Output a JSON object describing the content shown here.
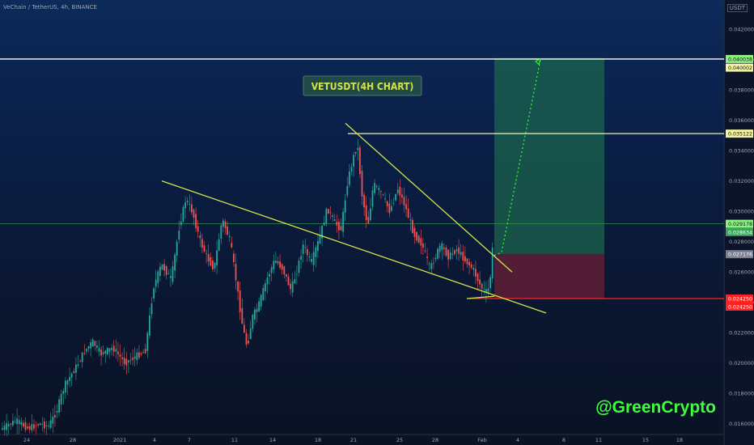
{
  "header": {
    "symbol_line": "VeChain / TetherUS, 4h, BINANCE",
    "unit": "USDT"
  },
  "colors": {
    "up": "#26a69a",
    "down": "#ef5350",
    "trend": "#d4e34a",
    "level": "#f2f2a0",
    "target_zone": "#1f6e4e",
    "stop_zone": "#6b1f35",
    "stop_line": "#ff2222",
    "watermark": "#3cff3c"
  },
  "chart_data": {
    "type": "candlestick",
    "title": "VETUSDT(4H CHART)",
    "watermark": "@GreenCrypto",
    "ylim": [
      0.0154,
      0.0435
    ],
    "y_ticks": [
      "0.042000",
      "0.040000",
      "0.038000",
      "0.036000",
      "0.034000",
      "0.032000",
      "0.030000",
      "0.028000",
      "0.026000",
      "0.024000",
      "0.022000",
      "0.020000",
      "0.018000",
      "0.016000"
    ],
    "x_ticks": [
      "24",
      "28",
      "2021",
      "4",
      "7",
      "11",
      "14",
      "18",
      "21",
      "25",
      "28",
      "Feb",
      "4",
      "8",
      "11",
      "15",
      "18"
    ],
    "price_path": [
      [
        0,
        0.0156
      ],
      [
        20,
        0.0162
      ],
      [
        35,
        0.0157
      ],
      [
        50,
        0.016
      ],
      [
        60,
        0.0158
      ],
      [
        70,
        0.0168
      ],
      [
        80,
        0.0185
      ],
      [
        95,
        0.0198
      ],
      [
        105,
        0.0208
      ],
      [
        115,
        0.0214
      ],
      [
        125,
        0.0206
      ],
      [
        140,
        0.021
      ],
      [
        155,
        0.02
      ],
      [
        170,
        0.0205
      ],
      [
        180,
        0.0208
      ],
      [
        190,
        0.025
      ],
      [
        200,
        0.0265
      ],
      [
        212,
        0.0255
      ],
      [
        222,
        0.029
      ],
      [
        230,
        0.0308
      ],
      [
        238,
        0.03
      ],
      [
        248,
        0.028
      ],
      [
        256,
        0.027
      ],
      [
        265,
        0.0262
      ],
      [
        275,
        0.0295
      ],
      [
        285,
        0.028
      ],
      [
        292,
        0.0255
      ],
      [
        300,
        0.0225
      ],
      [
        306,
        0.021
      ],
      [
        312,
        0.023
      ],
      [
        320,
        0.0238
      ],
      [
        330,
        0.0255
      ],
      [
        340,
        0.0268
      ],
      [
        350,
        0.0262
      ],
      [
        360,
        0.0248
      ],
      [
        368,
        0.0262
      ],
      [
        375,
        0.0278
      ],
      [
        385,
        0.0266
      ],
      [
        395,
        0.0282
      ],
      [
        405,
        0.0302
      ],
      [
        415,
        0.0292
      ],
      [
        422,
        0.0288
      ],
      [
        430,
        0.032
      ],
      [
        437,
        0.0335
      ],
      [
        442,
        0.0345
      ],
      [
        448,
        0.031
      ],
      [
        455,
        0.029
      ],
      [
        462,
        0.0318
      ],
      [
        472,
        0.0312
      ],
      [
        482,
        0.03
      ],
      [
        492,
        0.0315
      ],
      [
        500,
        0.0305
      ],
      [
        512,
        0.0285
      ],
      [
        522,
        0.0278
      ],
      [
        532,
        0.0262
      ],
      [
        545,
        0.0278
      ],
      [
        555,
        0.027
      ],
      [
        565,
        0.0275
      ],
      [
        575,
        0.0268
      ],
      [
        585,
        0.0262
      ],
      [
        595,
        0.025
      ],
      [
        603,
        0.0246
      ],
      [
        608,
        0.0262
      ],
      [
        610,
        0.0285
      ]
    ],
    "levels": [
      {
        "price": 0.040038,
        "label": "0.040038",
        "bg": "#8bf080"
      },
      {
        "price": 0.040002,
        "label": "0.040002",
        "bg": "#f2f2a0"
      },
      {
        "price": 0.035122,
        "label": "0.035122",
        "bg": "#f2f2a0"
      },
      {
        "price": 0.029178,
        "label": "0.029178",
        "bg": "#8bf080"
      },
      {
        "price": 0.028634,
        "label": "0.028634",
        "bg": "#3ba55c"
      },
      {
        "price": 0.027176,
        "label": "0.027176",
        "bg": "#7a8090"
      },
      {
        "price": 0.02425,
        "label": "0.024250",
        "bg": "#ff2222"
      },
      {
        "price": 0.02425,
        "label": "0.024250",
        "bg": "#ff2222"
      }
    ],
    "entry": 0.02717,
    "target": 0.0401,
    "stop": 0.02425,
    "trendlines": [
      {
        "x1": 200,
        "p1": 0.032,
        "x2": 675,
        "p2": 0.0233
      },
      {
        "x1": 427,
        "p1": 0.0358,
        "x2": 633,
        "p2": 0.026
      },
      {
        "x1": 577,
        "p1": 0.02425,
        "x2": 611,
        "p2": 0.0244
      }
    ],
    "projection": [
      [
        611,
        0.0271
      ],
      [
        620,
        0.0273
      ],
      [
        668,
        0.04
      ]
    ]
  }
}
